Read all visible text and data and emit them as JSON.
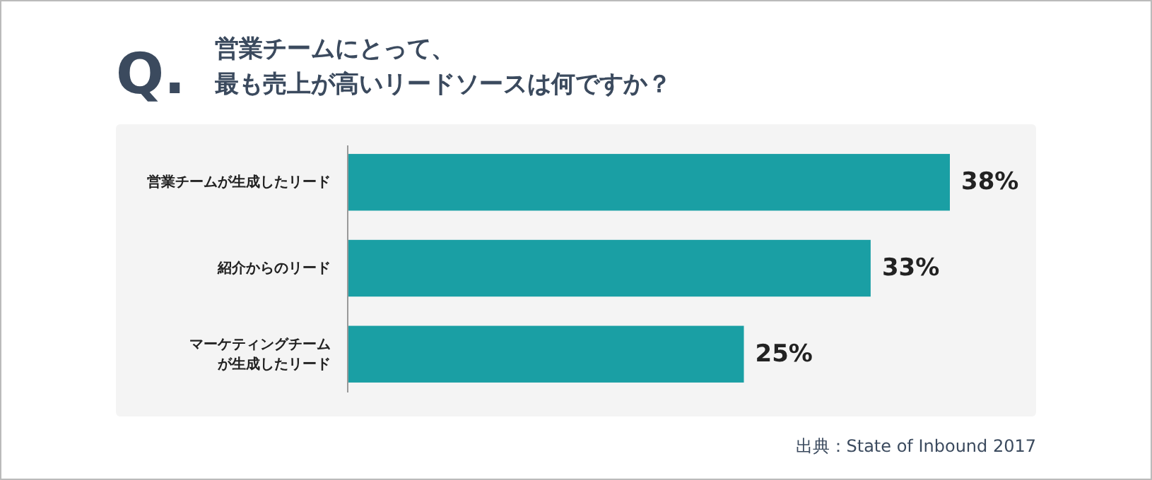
{
  "chart_data": {
    "type": "bar",
    "orientation": "horizontal",
    "title": "Q.",
    "subtitle": "営業チームにとって、最も売上が高いリードソースは何ですか？",
    "categories": [
      "営業チームが生成したリード",
      "紹介からのリード",
      "マーケティングチームが生成したリード"
    ],
    "values": [
      38,
      33,
      25
    ],
    "value_labels": [
      "38%",
      "33%",
      "25%"
    ],
    "color": "#1a9fa4",
    "annotations": [
      "出典：State of Inbound 2017"
    ]
  }
}
